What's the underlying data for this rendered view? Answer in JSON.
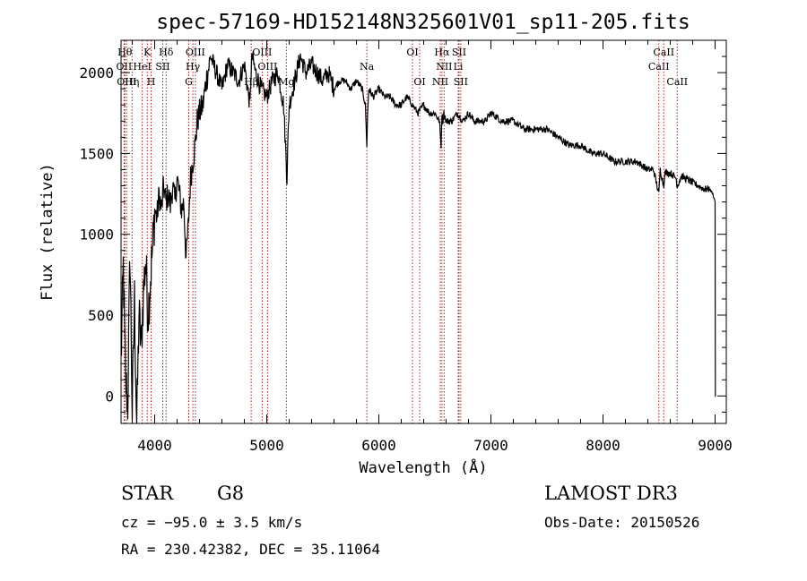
{
  "chart_data": {
    "type": "line",
    "title": "spec-57169-HD152148N325601V01_sp11-205.fits",
    "xlabel": "Wavelength (Å)",
    "ylabel": "Flux (relative)",
    "xlim": [
      3700,
      9100
    ],
    "ylim": [
      -170,
      2200
    ],
    "x_ticks": [
      4000,
      5000,
      6000,
      7000,
      8000,
      9000
    ],
    "y_ticks": [
      0,
      500,
      1000,
      1500,
      2000
    ],
    "grid": false,
    "series": [
      {
        "name": "spectrum",
        "x": [
          3700,
          3720,
          3740,
          3760,
          3780,
          3800,
          3820,
          3840,
          3860,
          3880,
          3900,
          3920,
          3940,
          3960,
          3980,
          4000,
          4020,
          4040,
          4060,
          4080,
          4100,
          4120,
          4140,
          4160,
          4180,
          4200,
          4220,
          4240,
          4260,
          4280,
          4300,
          4320,
          4340,
          4360,
          4380,
          4400,
          4430,
          4460,
          4500,
          4550,
          4600,
          4650,
          4700,
          4750,
          4800,
          4850,
          4860,
          4870,
          4900,
          4950,
          5000,
          5050,
          5100,
          5150,
          5170,
          5180,
          5190,
          5200,
          5250,
          5300,
          5350,
          5400,
          5450,
          5500,
          5550,
          5600,
          5650,
          5700,
          5750,
          5800,
          5850,
          5880,
          5890,
          5893,
          5900,
          5910,
          5950,
          6000,
          6050,
          6100,
          6150,
          6200,
          6250,
          6300,
          6350,
          6400,
          6450,
          6500,
          6540,
          6555,
          6563,
          6570,
          6580,
          6600,
          6650,
          6700,
          6750,
          6800,
          6850,
          6900,
          6950,
          7000,
          7100,
          7200,
          7300,
          7400,
          7500,
          7600,
          7700,
          7800,
          7900,
          8000,
          8100,
          8200,
          8300,
          8400,
          8450,
          8498,
          8510,
          8542,
          8550,
          8600,
          8650,
          8662,
          8700,
          8750,
          8800,
          8850,
          8900,
          8950,
          8980,
          9000,
          9002,
          9005
        ],
        "values": [
          200,
          800,
          100,
          -50,
          900,
          -100,
          600,
          -200,
          500,
          300,
          650,
          850,
          500,
          700,
          900,
          1150,
          1100,
          1250,
          1150,
          1300,
          1200,
          1250,
          1180,
          1300,
          1200,
          1350,
          1250,
          1150,
          1200,
          850,
          1050,
          1350,
          1450,
          1550,
          1700,
          1750,
          1800,
          1950,
          2100,
          2000,
          1900,
          2050,
          2000,
          1950,
          2050,
          1800,
          2000,
          2100,
          2000,
          1900,
          1850,
          1950,
          2000,
          1800,
          1500,
          1350,
          1600,
          1800,
          1950,
          2100,
          2000,
          2050,
          2000,
          1950,
          2000,
          1900,
          1950,
          1950,
          1900,
          1950,
          1900,
          1800,
          1600,
          1550,
          1750,
          1900,
          1850,
          1900,
          1850,
          1850,
          1800,
          1800,
          1850,
          1800,
          1750,
          1800,
          1750,
          1750,
          1700,
          1550,
          1750,
          1700,
          1750,
          1700,
          1700,
          1750,
          1700,
          1750,
          1700,
          1700,
          1700,
          1750,
          1700,
          1700,
          1650,
          1650,
          1650,
          1600,
          1550,
          1550,
          1500,
          1500,
          1450,
          1450,
          1450,
          1400,
          1400,
          1250,
          1400,
          1300,
          1380,
          1380,
          1350,
          1300,
          1360,
          1340,
          1320,
          1300,
          1280,
          1280,
          1250,
          1200,
          0,
          0
        ]
      }
    ],
    "line_markers": [
      {
        "x": 3734,
        "label": "Hθ",
        "row": 1
      },
      {
        "x": 3727,
        "label": "OII",
        "row": 2
      },
      {
        "x": 3750,
        "label": "OIII",
        "row": 3
      },
      {
        "x": 3798,
        "label": "Hη",
        "row": 3
      },
      {
        "x": 3889,
        "label": "HeI",
        "row": 2
      },
      {
        "x": 3934,
        "label": "K",
        "row": 1
      },
      {
        "x": 3968,
        "label": "H",
        "row": 3
      },
      {
        "x": 4072,
        "label": "SII",
        "row": 2
      },
      {
        "x": 4102,
        "label": "Hδ",
        "row": 1
      },
      {
        "x": 4304,
        "label": "G",
        "row": 3
      },
      {
        "x": 4341,
        "label": "Hγ",
        "row": 2
      },
      {
        "x": 4363,
        "label": "OIII",
        "row": 1
      },
      {
        "x": 4861,
        "label": "Hβ",
        "row": 3
      },
      {
        "x": 4959,
        "label": "OIII",
        "row": 1
      },
      {
        "x": 5007,
        "label": "OIII",
        "row": 2
      },
      {
        "x": 5175,
        "label": "Mg",
        "row": 3
      },
      {
        "x": 5893,
        "label": "Na",
        "row": 2
      },
      {
        "x": 6300,
        "label": "OI",
        "row": 1
      },
      {
        "x": 6364,
        "label": "OI",
        "row": 3
      },
      {
        "x": 6548,
        "label": "NII",
        "row": 3
      },
      {
        "x": 6563,
        "label": "Hα",
        "row": 1
      },
      {
        "x": 6583,
        "label": "NII",
        "row": 2
      },
      {
        "x": 6708,
        "label": "Li",
        "row": 2
      },
      {
        "x": 6716,
        "label": "SII",
        "row": 1
      },
      {
        "x": 6731,
        "label": "SII",
        "row": 3
      },
      {
        "x": 8498,
        "label": "CaII",
        "row": 2
      },
      {
        "x": 8542,
        "label": "CaII",
        "row": 1
      },
      {
        "x": 8662,
        "label": "CaII",
        "row": 3
      }
    ]
  },
  "info": {
    "class_label": "STAR",
    "subclass": "G8",
    "survey": "LAMOST DR3",
    "cz": "cz = −95.0 ± 3.5 km/s",
    "obs_date": "Obs-Date: 20150526",
    "coords": "RA = 230.42382, DEC =  35.11064"
  }
}
